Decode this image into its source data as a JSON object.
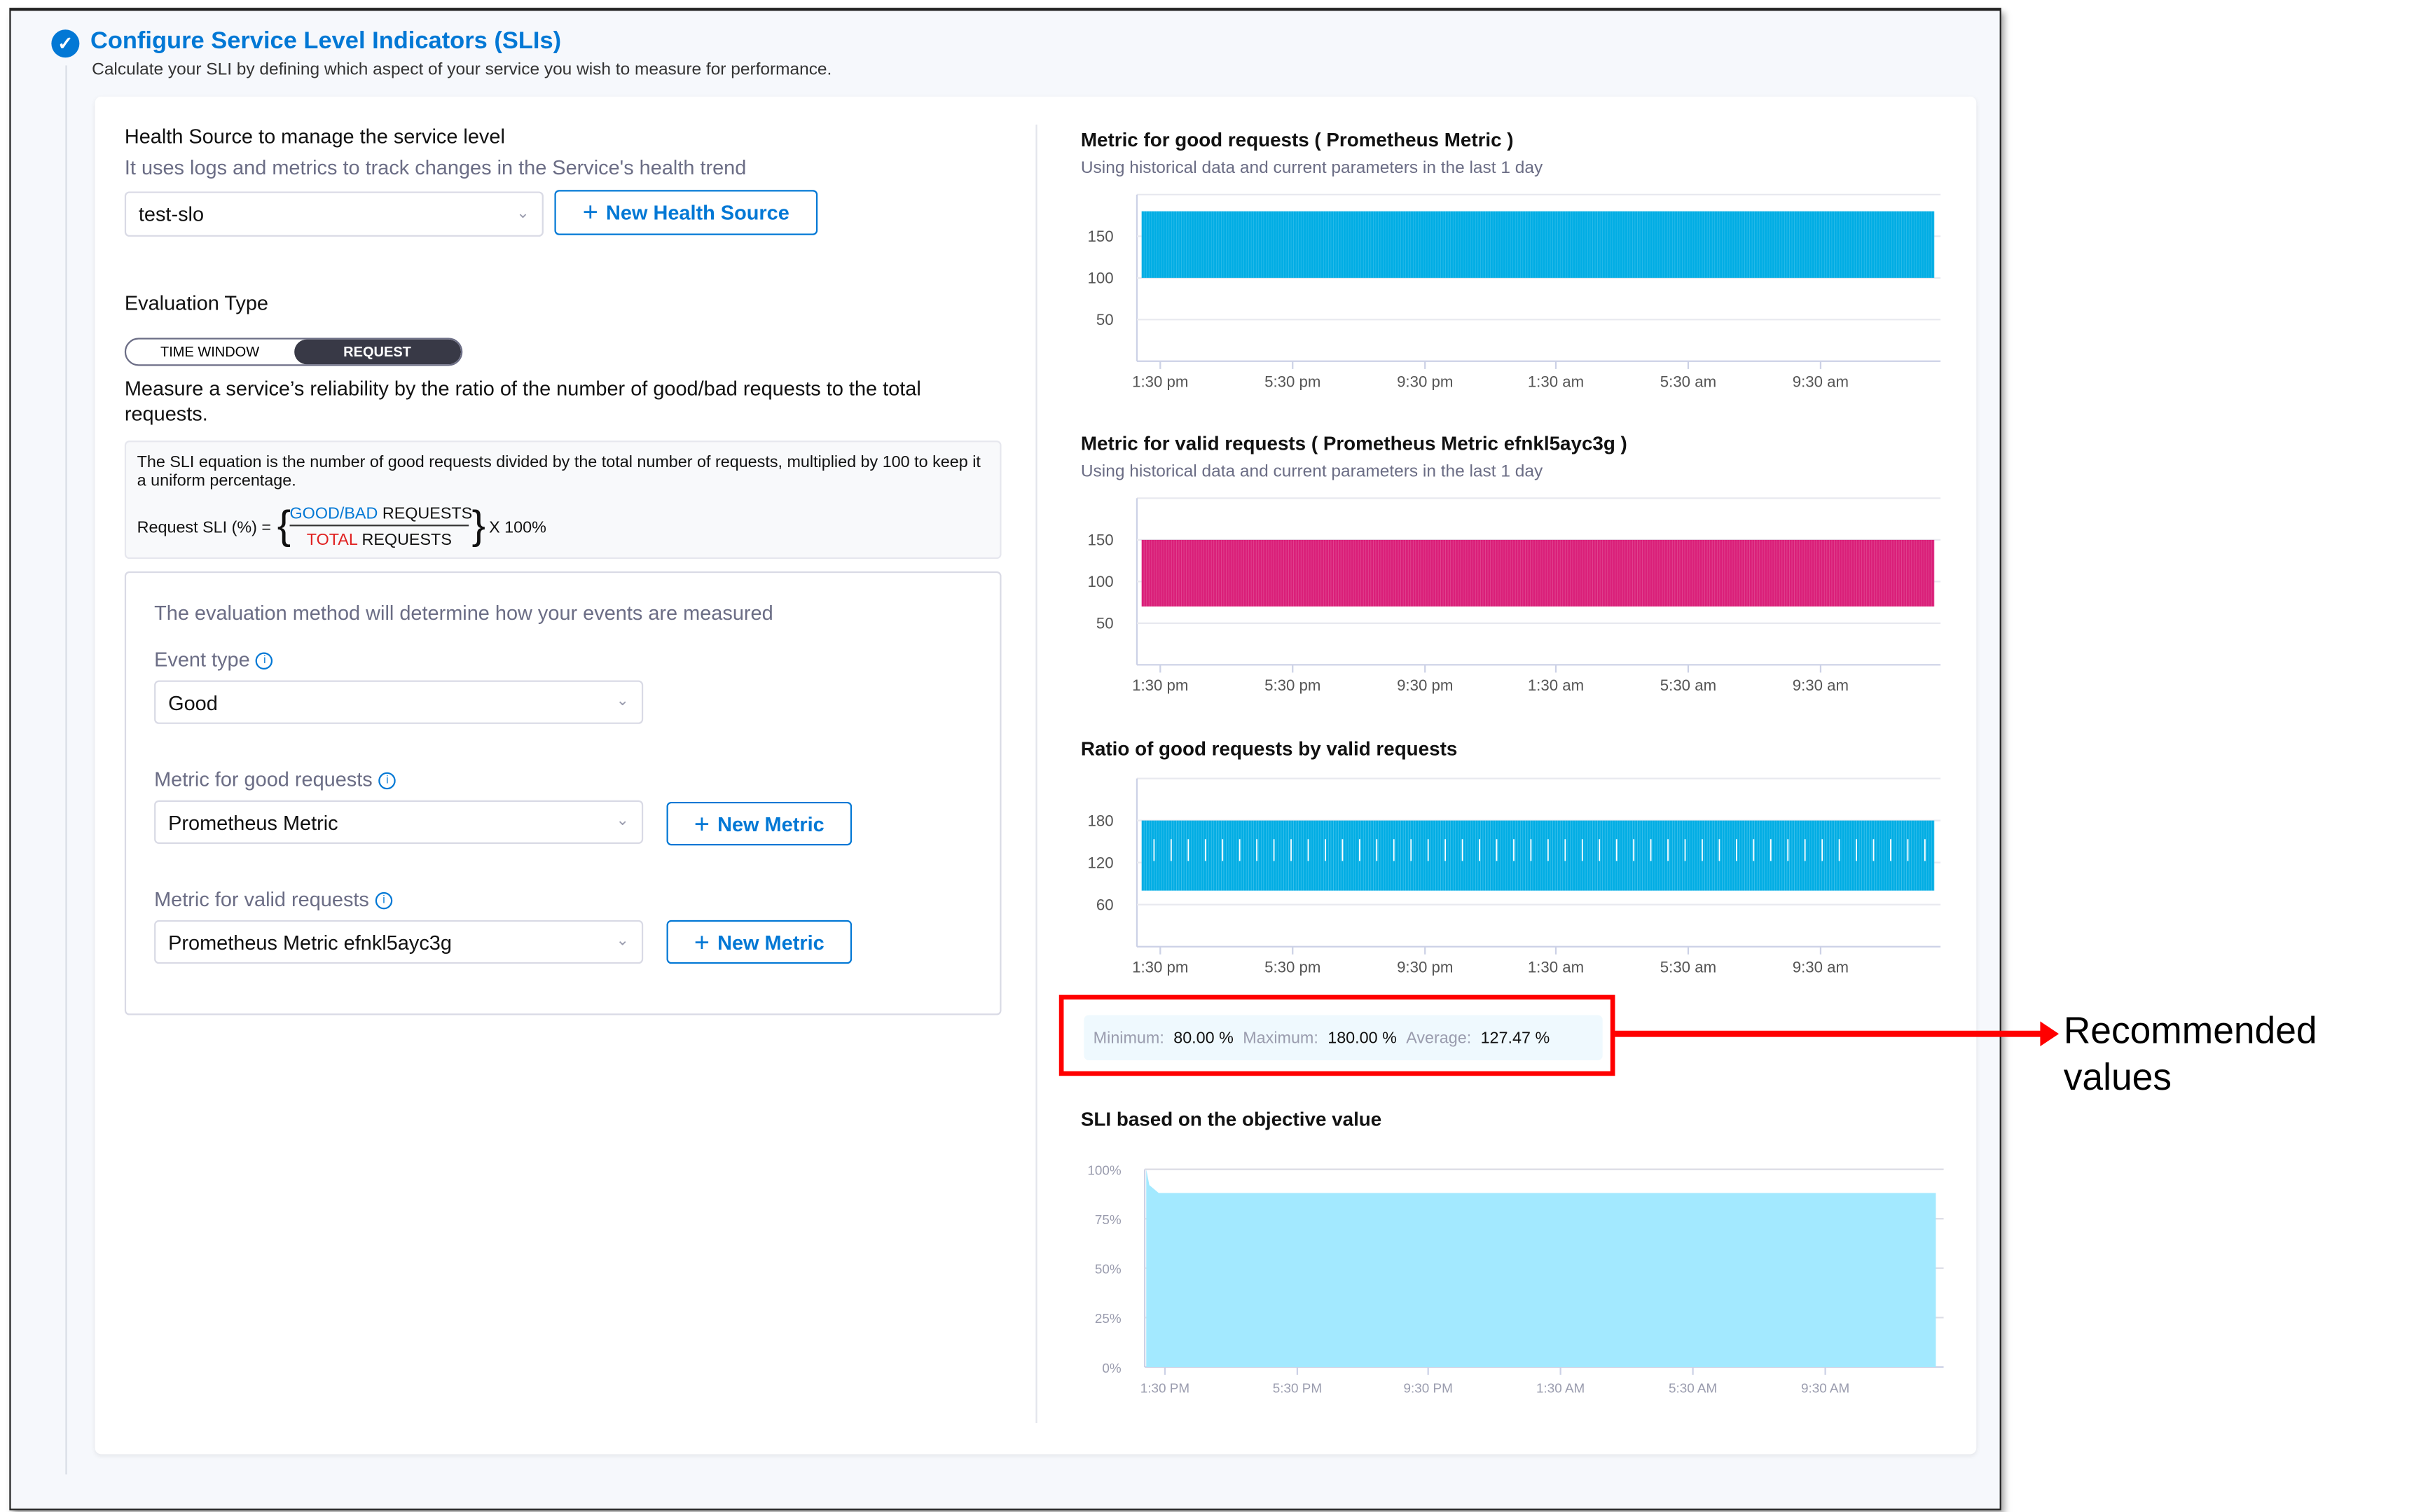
{
  "header": {
    "title": "Configure Service Level Indicators (SLIs)",
    "subtitle": "Calculate your SLI by defining which aspect of your service you wish to measure for performance."
  },
  "health_source": {
    "title": "Health Source to manage the service level",
    "description": "It uses logs and metrics to track changes in the Service's health trend",
    "selected": "test-slo",
    "new_button": "New Health Source"
  },
  "evaluation": {
    "title": "Evaluation Type",
    "options": [
      "TIME WINDOW",
      "REQUEST"
    ],
    "active": "REQUEST",
    "description": "Measure a service’s reliability by the ratio of the number of good/bad requests to the total requests.",
    "equation_text": "The SLI equation is the number of good requests divided by the total number of requests, multiplied by 100 to keep it a uniform percentage.",
    "equation_label": "Request SLI (%) =",
    "numerator_highlight": "GOOD/BAD",
    "numerator_rest": "REQUESTS",
    "denominator_highlight": "TOTAL",
    "denominator_rest": "REQUESTS",
    "multiplier": "X 100%"
  },
  "method": {
    "intro": "The evaluation method will determine how your events are measured",
    "event_type_label": "Event type",
    "event_type_value": "Good",
    "good_label": "Metric for good requests",
    "good_value": "Prometheus Metric",
    "valid_label": "Metric for valid requests",
    "valid_value": "Prometheus Metric efnkl5ayc3g",
    "new_metric": "New Metric"
  },
  "stats": {
    "min_label": "Minimum:",
    "min_value": "80.00 %",
    "max_label": "Maximum:",
    "max_value": "180.00 %",
    "avg_label": "Average:",
    "avg_value": "127.47 %"
  },
  "annotation": {
    "line1": "Recommended",
    "line2": "values",
    "color": "#ff0000"
  },
  "chart_data": [
    {
      "type": "area",
      "title": "Metric for good requests ( Prometheus Metric )",
      "subtitle": "Using historical data and current parameters in the last 1 day",
      "x_ticks": [
        "1:30 pm",
        "5:30 pm",
        "9:30 pm",
        "1:30 am",
        "5:30 am",
        "9:30 am"
      ],
      "y_ticks": [
        "150",
        "100",
        "50"
      ],
      "ylim": [
        0,
        200
      ],
      "series": [
        {
          "oscillation_low": 100,
          "oscillation_high": 180,
          "color": "#00ade4"
        }
      ],
      "grid": true
    },
    {
      "type": "area",
      "title": "Metric for valid requests ( Prometheus Metric efnkl5ayc3g )",
      "subtitle": "Using historical data and current parameters in the last 1 day",
      "x_ticks": [
        "1:30 pm",
        "5:30 pm",
        "9:30 pm",
        "1:30 am",
        "5:30 am",
        "9:30 am"
      ],
      "y_ticks": [
        "150",
        "100",
        "50"
      ],
      "ylim": [
        0,
        200
      ],
      "series": [
        {
          "oscillation_low": 70,
          "oscillation_high": 150,
          "color": "#da1f79"
        }
      ],
      "grid": true
    },
    {
      "type": "line",
      "title": "Ratio of good requests by valid requests",
      "x_ticks": [
        "1:30 pm",
        "5:30 pm",
        "9:30 pm",
        "1:30 am",
        "5:30 am",
        "9:30 am"
      ],
      "y_ticks": [
        "180",
        "120",
        "60"
      ],
      "ylim": [
        0,
        240
      ],
      "series": [
        {
          "oscillation_low": 80,
          "oscillation_high": 180,
          "color": "#00ade4"
        }
      ],
      "grid": true
    },
    {
      "type": "area",
      "title": "SLI based on the objective value",
      "x_ticks": [
        "1:30 PM",
        "5:30 PM",
        "9:30 PM",
        "1:30 AM",
        "5:30 AM",
        "9:30 AM"
      ],
      "y_ticks": [
        "100%",
        "75%",
        "50%",
        "25%",
        "0%"
      ],
      "ylim": [
        0,
        100
      ],
      "series": [
        {
          "start": 100,
          "steady": 88,
          "color": "#a3e9ff"
        }
      ],
      "grid": true
    }
  ]
}
